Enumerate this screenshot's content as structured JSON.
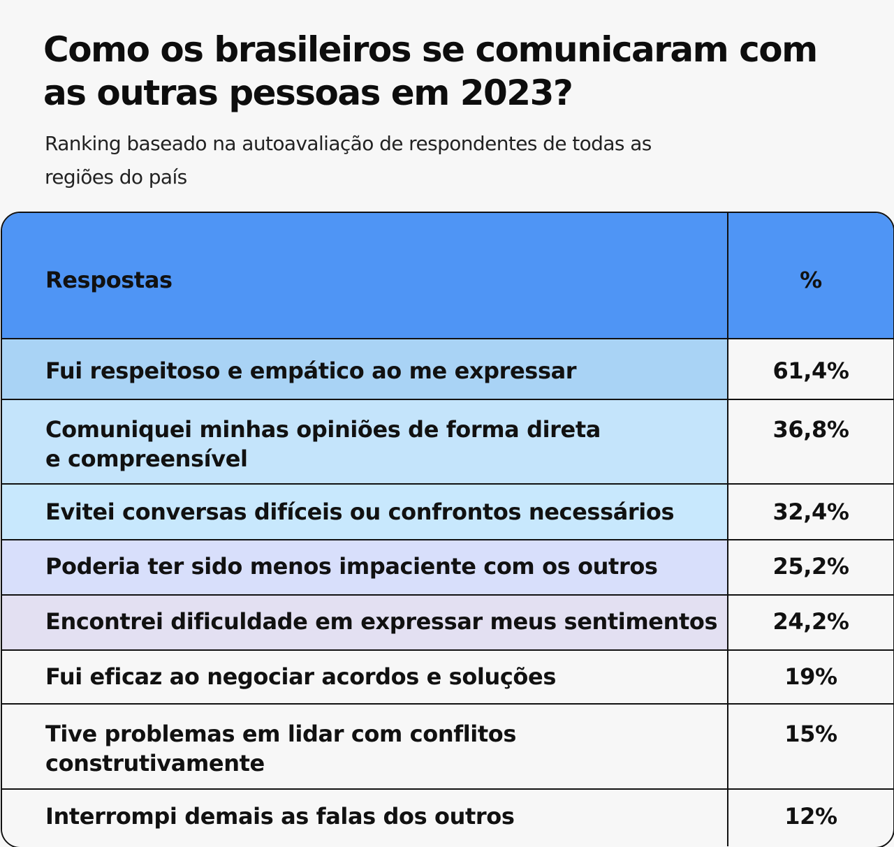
{
  "title": "Como os brasileiros se comunicaram com as outras pessoas em 2023?",
  "subtitle": "Ranking baseado na autoavaliação de respondentes de todas as regiões do país",
  "chart_data": {
    "type": "table",
    "title": "Como os brasileiros se comunicaram com as outras pessoas em 2023?",
    "subtitle": "Ranking baseado na autoavaliação de respondentes de todas as regiões do país",
    "columns": [
      "Respostas",
      "%"
    ],
    "header_color": "#4f95f5",
    "rows": [
      {
        "label": "Fui respeitoso e empático ao me expressar",
        "value_text": "61,4%",
        "value": 61.4,
        "color": "#a9d3f5"
      },
      {
        "label": "Comuniquei minhas opiniões de forma direta e compreensível",
        "value_text": "36,8%",
        "value": 36.8,
        "color": "#c4e4fb"
      },
      {
        "label": "Evitei conversas difíceis ou confrontos necessários",
        "value_text": "32,4%",
        "value": 32.4,
        "color": "#c8e8fd"
      },
      {
        "label": "Poderia ter sido menos impaciente com os outros",
        "value_text": "25,2%",
        "value": 25.2,
        "color": "#d8dffb"
      },
      {
        "label": "Encontrei dificuldade em expressar meus sentimentos",
        "value_text": "24,2%",
        "value": 24.2,
        "color": "#e3e0f2"
      },
      {
        "label": "Fui eficaz ao negociar acordos e soluções",
        "value_text": "19%",
        "value": 19,
        "color": "#f7f7f7"
      },
      {
        "label": "Tive problemas em lidar com conflitos construtivamente",
        "value_text": "15%",
        "value": 15,
        "color": "#f7f7f7"
      },
      {
        "label": "Interrompi demais as falas dos outros",
        "value_text": "12%",
        "value": 12,
        "color": "#f7f7f7"
      }
    ]
  }
}
